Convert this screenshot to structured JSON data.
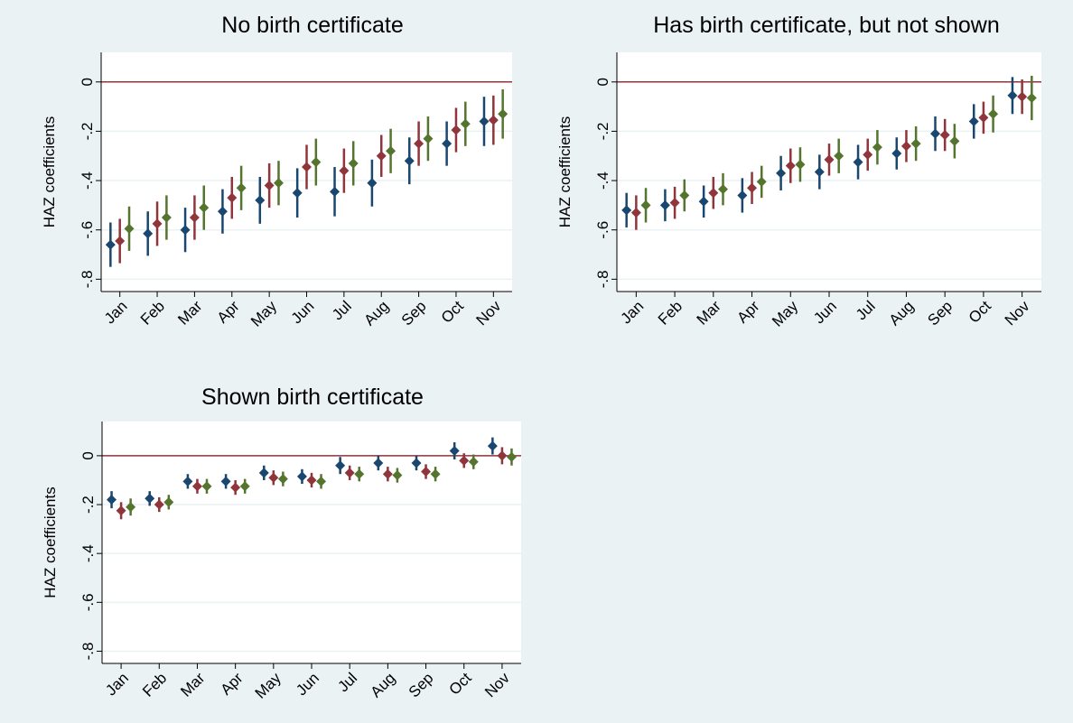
{
  "chart_data": [
    {
      "type": "errorbar",
      "title": "No birth certificate",
      "ylabel": "HAZ coefficients",
      "categories": [
        "Jan",
        "Feb",
        "Mar",
        "Apr",
        "May",
        "Jun",
        "Jul",
        "Aug",
        "Sep",
        "Oct",
        "Nov"
      ],
      "ylim": [
        -0.85,
        0.12
      ],
      "yticks": [
        0,
        {
          "value": -0.2,
          "label": "-.2"
        },
        {
          "value": -0.4,
          "label": "-.4"
        },
        {
          "value": -0.6,
          "label": "-.6"
        },
        {
          "value": -0.8,
          "label": "-.8"
        }
      ],
      "grid": true,
      "yline": 0,
      "yline_color": "#90353b",
      "series": [
        {
          "color": "#1a476f",
          "values": [
            -0.66,
            -0.615,
            -0.6,
            -0.525,
            -0.48,
            -0.45,
            -0.445,
            -0.41,
            -0.32,
            -0.25,
            -0.16
          ],
          "errors": [
            0.09,
            0.09,
            0.09,
            0.09,
            0.095,
            0.1,
            0.1,
            0.095,
            0.095,
            0.09,
            0.1
          ]
        },
        {
          "color": "#90353b",
          "values": [
            -0.645,
            -0.575,
            -0.55,
            -0.47,
            -0.42,
            -0.345,
            -0.36,
            -0.3,
            -0.25,
            -0.195,
            -0.155
          ],
          "errors": [
            0.09,
            0.09,
            0.09,
            0.085,
            0.09,
            0.09,
            0.09,
            0.085,
            0.09,
            0.09,
            0.1
          ]
        },
        {
          "color": "#55752f",
          "values": [
            -0.595,
            -0.55,
            -0.51,
            -0.43,
            -0.41,
            -0.325,
            -0.33,
            -0.28,
            -0.23,
            -0.17,
            -0.13
          ],
          "errors": [
            0.09,
            0.09,
            0.09,
            0.09,
            0.09,
            0.095,
            0.09,
            0.09,
            0.09,
            0.09,
            0.1
          ]
        }
      ]
    },
    {
      "type": "errorbar",
      "title": "Has birth certificate, but not shown",
      "ylabel": "HAZ coefficients",
      "categories": [
        "Jan",
        "Feb",
        "Mar",
        "Apr",
        "May",
        "Jun",
        "Jul",
        "Aug",
        "Sep",
        "Oct",
        "Nov"
      ],
      "ylim": [
        -0.85,
        0.12
      ],
      "yticks": [
        0,
        {
          "value": -0.2,
          "label": "-.2"
        },
        {
          "value": -0.4,
          "label": "-.4"
        },
        {
          "value": -0.6,
          "label": "-.6"
        },
        {
          "value": -0.8,
          "label": "-.8"
        }
      ],
      "grid": true,
      "yline": 0,
      "yline_color": "#90353b",
      "series": [
        {
          "color": "#1a476f",
          "values": [
            -0.52,
            -0.5,
            -0.485,
            -0.46,
            -0.37,
            -0.365,
            -0.325,
            -0.29,
            -0.21,
            -0.16,
            -0.055
          ],
          "errors": [
            0.07,
            0.065,
            0.065,
            0.07,
            0.07,
            0.07,
            0.07,
            0.065,
            0.07,
            0.07,
            0.075
          ]
        },
        {
          "color": "#90353b",
          "values": [
            -0.53,
            -0.49,
            -0.45,
            -0.43,
            -0.34,
            -0.315,
            -0.295,
            -0.26,
            -0.215,
            -0.145,
            -0.06
          ],
          "errors": [
            0.07,
            0.065,
            0.065,
            0.065,
            0.07,
            0.065,
            0.065,
            0.065,
            0.065,
            0.065,
            0.07
          ]
        },
        {
          "color": "#55752f",
          "values": [
            -0.5,
            -0.46,
            -0.435,
            -0.405,
            -0.335,
            -0.3,
            -0.265,
            -0.25,
            -0.24,
            -0.13,
            -0.065
          ],
          "errors": [
            0.07,
            0.065,
            0.065,
            0.065,
            0.07,
            0.07,
            0.07,
            0.07,
            0.07,
            0.075,
            0.09
          ]
        }
      ]
    },
    {
      "type": "errorbar",
      "title": "Shown birth certificate",
      "ylabel": "HAZ coefficients",
      "categories": [
        "Jan",
        "Feb",
        "Mar",
        "Apr",
        "May",
        "Jun",
        "Jul",
        "Aug",
        "Sep",
        "Oct",
        "Nov"
      ],
      "ylim": [
        -0.85,
        0.14
      ],
      "yticks": [
        0,
        {
          "value": -0.2,
          "label": "-.2"
        },
        {
          "value": -0.4,
          "label": "-.4"
        },
        {
          "value": -0.6,
          "label": "-.6"
        },
        {
          "value": -0.8,
          "label": "-.8"
        }
      ],
      "grid": true,
      "yline": 0,
      "yline_color": "#90353b",
      "series": [
        {
          "color": "#1a476f",
          "values": [
            -0.18,
            -0.175,
            -0.105,
            -0.105,
            -0.07,
            -0.085,
            -0.04,
            -0.03,
            -0.03,
            0.02,
            0.04
          ],
          "errors": [
            0.035,
            0.03,
            0.03,
            0.03,
            0.03,
            0.03,
            0.035,
            0.03,
            0.03,
            0.035,
            0.035
          ]
        },
        {
          "color": "#90353b",
          "values": [
            -0.225,
            -0.2,
            -0.125,
            -0.13,
            -0.09,
            -0.1,
            -0.07,
            -0.075,
            -0.065,
            -0.02,
            0.0
          ],
          "errors": [
            0.035,
            0.03,
            0.03,
            0.03,
            0.03,
            0.03,
            0.03,
            0.03,
            0.03,
            0.03,
            0.035
          ]
        },
        {
          "color": "#55752f",
          "values": [
            -0.21,
            -0.19,
            -0.125,
            -0.125,
            -0.095,
            -0.105,
            -0.075,
            -0.08,
            -0.075,
            -0.025,
            -0.005
          ],
          "errors": [
            0.035,
            0.03,
            0.03,
            0.03,
            0.03,
            0.03,
            0.03,
            0.03,
            0.03,
            0.03,
            0.035
          ]
        }
      ]
    }
  ]
}
